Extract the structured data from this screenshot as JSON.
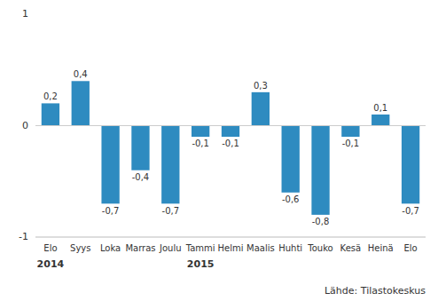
{
  "chart_data": {
    "type": "bar",
    "categories": [
      "Elo",
      "Syys",
      "Loka",
      "Marras",
      "Joulu",
      "Tammi",
      "Helmi",
      "Maalis",
      "Huhti",
      "Touko",
      "Kesä",
      "Heinä",
      "Elo"
    ],
    "values": [
      0.2,
      0.4,
      -0.7,
      -0.4,
      -0.7,
      -0.1,
      -0.1,
      0.3,
      -0.6,
      -0.8,
      -0.1,
      0.1,
      -0.7
    ],
    "value_labels": [
      "0,2",
      "0,4",
      "-0,7",
      "-0,4",
      "-0,7",
      "-0,1",
      "-0,1",
      "0,3",
      "-0,6",
      "-0,8",
      "-0,1",
      "0,1",
      "-0,7"
    ],
    "data_labels": true,
    "color": "#2e8bc0",
    "ylim": [
      -1.0,
      1.0
    ],
    "yticks": [
      -1,
      0,
      1
    ],
    "grid": false,
    "annotations": [
      {
        "text": "2014",
        "x": 0
      },
      {
        "text": "2015",
        "x": 5
      }
    ],
    "source": "Lähde: Tilastokeskus"
  }
}
